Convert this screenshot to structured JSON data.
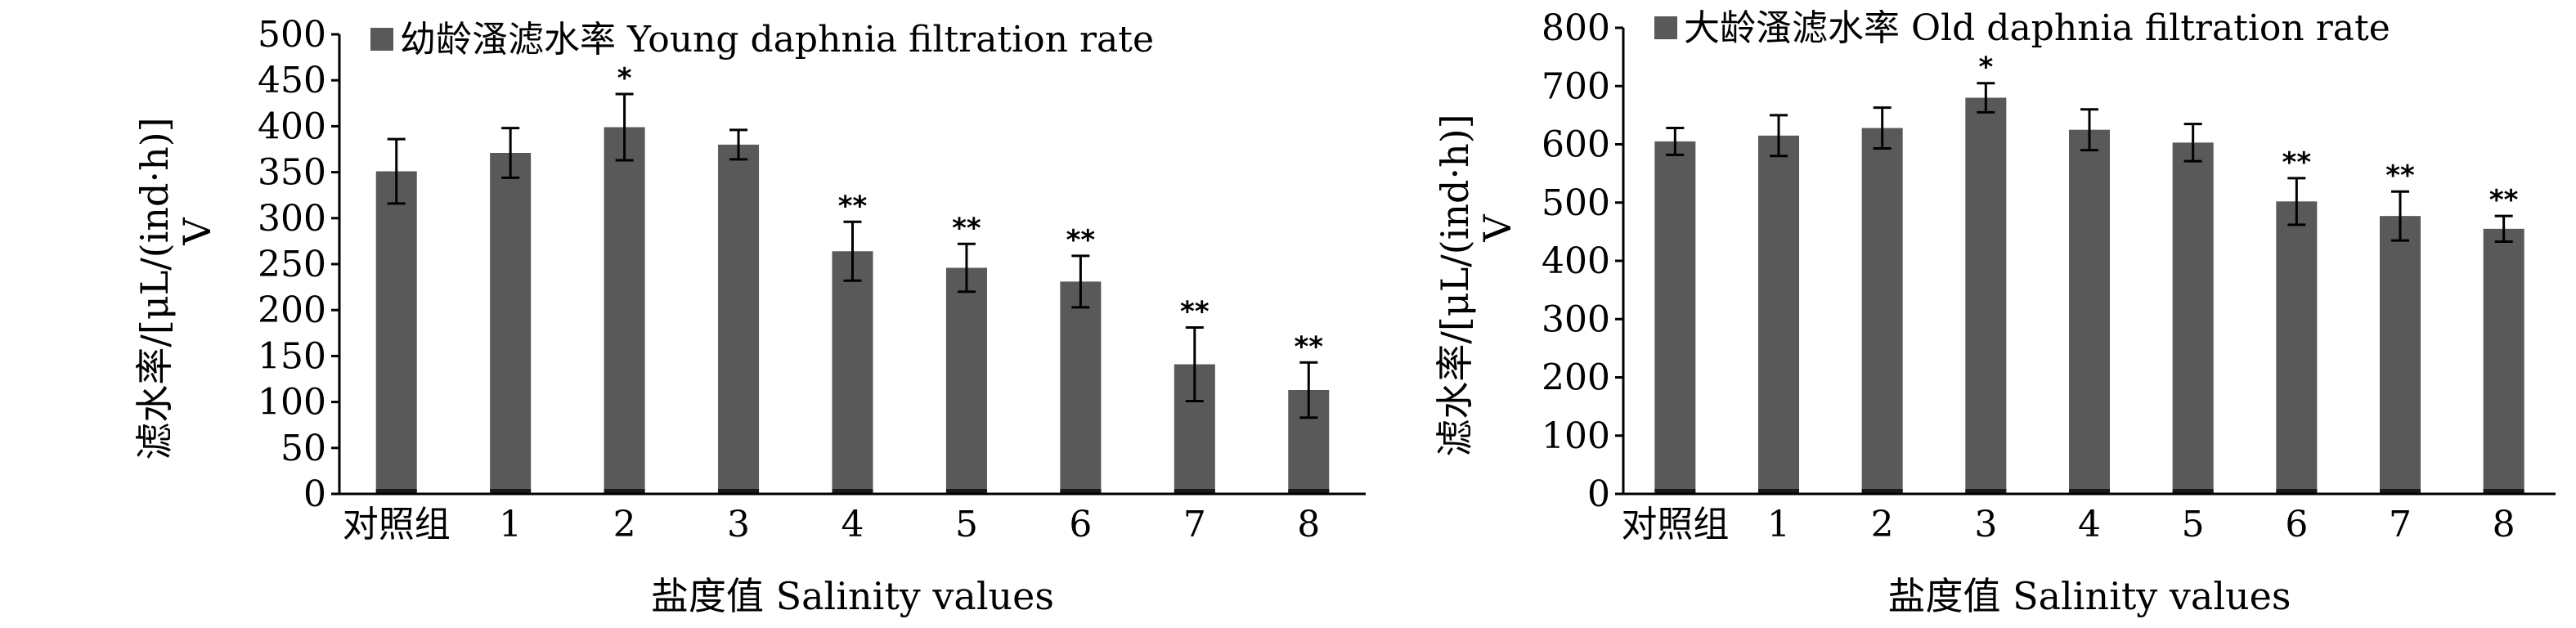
{
  "chart_data": [
    {
      "type": "bar",
      "categories": [
        "对照组",
        "1",
        "2",
        "3",
        "4",
        "5",
        "6",
        "7",
        "8"
      ],
      "series": [
        {
          "name": "幼龄溞滤水率 Young daphnia filtration rate",
          "values": [
            351,
            371,
            399,
            380,
            264,
            246,
            231,
            141,
            113
          ],
          "errors": [
            35,
            27,
            36,
            16,
            32,
            26,
            28,
            40,
            30
          ],
          "significance": [
            "",
            "",
            "*",
            "",
            "**",
            "**",
            "**",
            "**",
            "**"
          ]
        }
      ],
      "xlabel": "盐度值 Salinity values",
      "ylabel": "滤水率/[μL/(ind·h)]",
      "ylabel_symbol": "V",
      "ylim": [
        0,
        500
      ],
      "ystep": 50,
      "yticks": [
        0,
        50,
        100,
        150,
        200,
        250,
        300,
        350,
        400,
        450,
        500
      ],
      "legend_position": "top-left",
      "grid": false,
      "bar_color": "#595959"
    },
    {
      "type": "bar",
      "categories": [
        "对照组",
        "1",
        "2",
        "3",
        "4",
        "5",
        "6",
        "7",
        "8"
      ],
      "series": [
        {
          "name": "大龄溞滤水率 Old daphnia filtration rate",
          "values": [
            605,
            615,
            628,
            680,
            625,
            603,
            502,
            477,
            455
          ],
          "errors": [
            23,
            35,
            35,
            25,
            35,
            32,
            40,
            42,
            22
          ],
          "significance": [
            "",
            "",
            "",
            "*",
            "",
            "",
            "**",
            "**",
            "**"
          ]
        }
      ],
      "xlabel": "盐度值 Salinity values",
      "ylabel": "滤水率/[μL/(ind·h)]",
      "ylabel_symbol": "V",
      "ylim": [
        0,
        800
      ],
      "ystep": 100,
      "yticks": [
        0,
        100,
        200,
        300,
        400,
        500,
        600,
        700,
        800
      ],
      "legend_position": "top-left",
      "grid": false,
      "bar_color": "#595959"
    }
  ]
}
